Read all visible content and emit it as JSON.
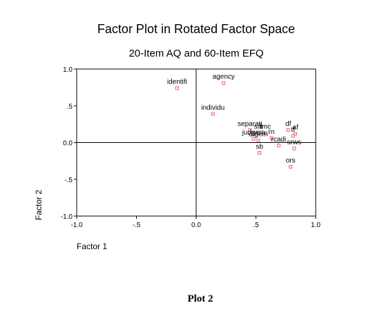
{
  "chart_data": {
    "type": "scatter",
    "title": "Factor Plot in Rotated Factor Space",
    "subtitle": "20-Item AQ and 60-Item EFQ",
    "xlabel": "Factor 1",
    "ylabel": "Factor 2",
    "xlim": [
      -1.0,
      1.0
    ],
    "ylim": [
      -1.0,
      1.0
    ],
    "x_ticks": [
      "-1.0",
      "-.5",
      "0.0",
      ".5",
      "1.0"
    ],
    "y_ticks": [
      "1.0",
      ".5",
      "0.0",
      "-.5",
      "-1.0"
    ],
    "grid": false,
    "reference_lines": [
      0,
      0
    ],
    "marker_color": "#e8606e",
    "points": [
      {
        "label": "agency",
        "x": 0.23,
        "y": 0.81
      },
      {
        "label": "identifi",
        "x": -0.16,
        "y": 0.74
      },
      {
        "label": "individu",
        "x": 0.14,
        "y": 0.39
      },
      {
        "label": "separati",
        "x": 0.45,
        "y": 0.17
      },
      {
        "label": "sifi",
        "x": 0.52,
        "y": 0.13
      },
      {
        "label": "imc",
        "x": 0.58,
        "y": 0.13
      },
      {
        "label": "judgem",
        "x": 0.48,
        "y": 0.05
      },
      {
        "label": "dfgem",
        "x": 0.52,
        "y": 0.03
      },
      {
        "label": "rn",
        "x": 0.63,
        "y": 0.06
      },
      {
        "label": "sb",
        "x": 0.53,
        "y": -0.14
      },
      {
        "label": "rcadi",
        "x": 0.69,
        "y": -0.04
      },
      {
        "label": "df",
        "x": 0.77,
        "y": 0.17
      },
      {
        "label": "af",
        "x": 0.83,
        "y": 0.12
      },
      {
        "label": "tf",
        "x": 0.81,
        "y": 0.09
      },
      {
        "label": "srws",
        "x": 0.82,
        "y": -0.08
      },
      {
        "label": "ors",
        "x": 0.79,
        "y": -0.33
      }
    ]
  },
  "caption": "Plot 2"
}
